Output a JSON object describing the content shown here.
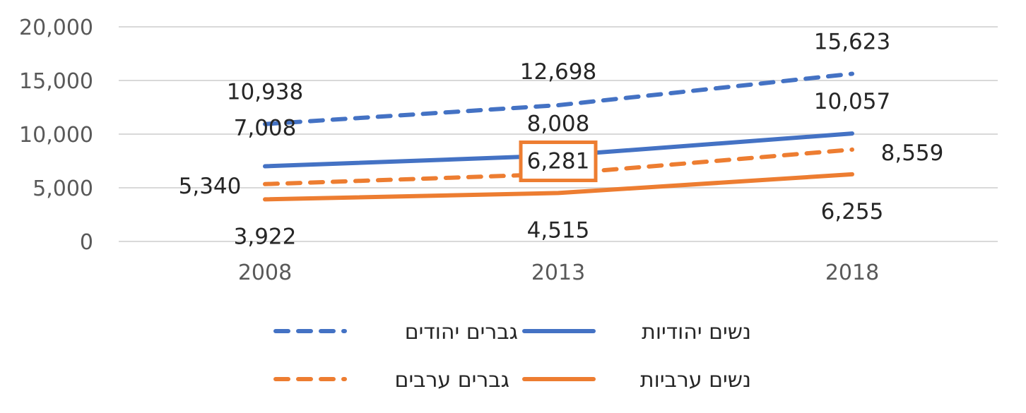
{
  "chart_data": {
    "type": "line",
    "x": [
      "2008",
      "2013",
      "2018"
    ],
    "ylim": [
      0,
      20000
    ],
    "yticks": [
      "0",
      "5,000",
      "10,000",
      "15,000",
      "20,000"
    ],
    "grid": true,
    "legend_position": "bottom",
    "series": [
      {
        "name": "גברים יהודים",
        "values": [
          10938,
          12698,
          15623
        ],
        "labels": [
          "10,938",
          "12,698",
          "15,623"
        ],
        "color": "#4472C4",
        "dash": true
      },
      {
        "name": "נשים יהודיות",
        "values": [
          7008,
          8008,
          10057
        ],
        "labels": [
          "7,008",
          "8,008",
          "10,057"
        ],
        "color": "#4472C4",
        "dash": false
      },
      {
        "name": "גברים ערבים",
        "values": [
          5340,
          6281,
          8559
        ],
        "labels": [
          "5,340",
          "6,281",
          "8,559"
        ],
        "color": "#ED7D31",
        "dash": true
      },
      {
        "name": "נשים ערביות",
        "values": [
          3922,
          4515,
          6255
        ],
        "labels": [
          "3,922",
          "4,515",
          "6,255"
        ],
        "color": "#ED7D31",
        "dash": false
      }
    ],
    "highlighted_label": "6,281"
  }
}
